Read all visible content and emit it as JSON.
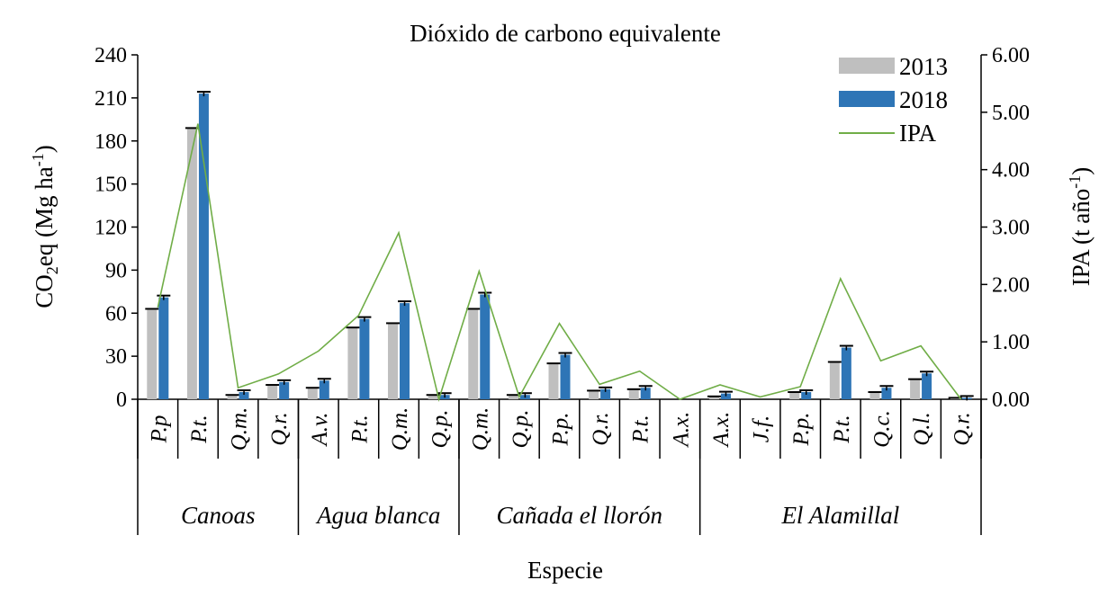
{
  "chart_data": {
    "type": "bar",
    "title": "Dióxido de carbono equivalente",
    "xlabel": "Especie",
    "ylabel": "CO₂eq (Mg ha⁻¹)",
    "ylabel_parts": {
      "base": "CO",
      "sub": "2",
      "mid": "eq (Mg ha",
      "sup": "-1",
      "end": ")"
    },
    "y2label_parts": {
      "base": "IPA (t año",
      "sup": "-1",
      "end": ")"
    },
    "ylim": [
      0,
      240
    ],
    "y_ticks": [
      "0",
      "30",
      "60",
      "90",
      "120",
      "150",
      "180",
      "210",
      "240"
    ],
    "y2lim": [
      0,
      6
    ],
    "y2_ticks": [
      "0.00",
      "1.00",
      "2.00",
      "3.00",
      "4.00",
      "5.00",
      "6.00"
    ],
    "categories": [
      "P.p",
      "P.t.",
      "Q.m.",
      "Q.r.",
      "A.v.",
      "P.t.",
      "Q.m.",
      "Q.p.",
      "Q.m.",
      "Q.p.",
      "P.p.",
      "Q.r.",
      "P.t.",
      "A.x.",
      "A.x.",
      "J.f.",
      "P.p.",
      "P.t.",
      "Q.c.",
      "Q.l.",
      "Q.r."
    ],
    "groups": [
      {
        "label": "Canoas",
        "count": 4
      },
      {
        "label": "Agua blanca",
        "count": 4
      },
      {
        "label": "Cañada el llorón",
        "count": 6
      },
      {
        "label": "El Alamillal",
        "count": 7
      }
    ],
    "series": [
      {
        "name": "2013",
        "type": "bar",
        "color": "#bfbfbf",
        "values": [
          63,
          189,
          3,
          10,
          8,
          50,
          53,
          3,
          63,
          3,
          25,
          6,
          7,
          0,
          2,
          0,
          5,
          26,
          5,
          14,
          1
        ]
      },
      {
        "name": "2018",
        "type": "bar",
        "color": "#2e75b6",
        "values": [
          71,
          213,
          5,
          12,
          13,
          56,
          67,
          3,
          73,
          3,
          31,
          7,
          8,
          0,
          4,
          0,
          5,
          36,
          8,
          18,
          1
        ]
      },
      {
        "name": "IPA",
        "type": "line",
        "axis": "right",
        "color": "#70ad47",
        "values": [
          1.6,
          4.8,
          0.2,
          0.44,
          0.84,
          1.46,
          2.9,
          0.0,
          2.23,
          0.04,
          1.32,
          0.26,
          0.49,
          0.0,
          0.25,
          0.04,
          0.22,
          2.1,
          0.67,
          0.93,
          0.0
        ]
      }
    ],
    "error_bars": true,
    "legend_position": "top-right"
  }
}
